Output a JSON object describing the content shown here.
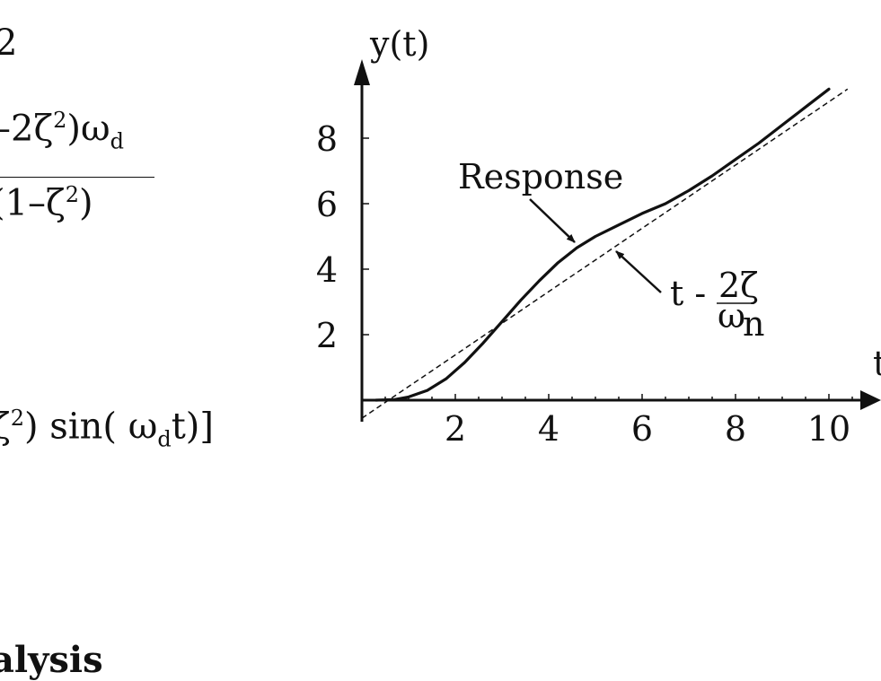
{
  "left_text": {
    "line1": "2",
    "numerator": "–2ζ",
    "numerator_sup": "2",
    "numerator_tail": ")ω",
    "numerator_sub": "d",
    "denominator": "(1–ζ",
    "denominator_sup": "2",
    "denominator_tail": ")",
    "sine_prefix": "ζ",
    "sine_sup": "2",
    "sine_mid": ") sin( ω",
    "sine_sub": "d",
    "sine_tail": "t)]",
    "bottom_heading": "alysis"
  },
  "chart_data": {
    "type": "line",
    "title": "",
    "xlabel": "t",
    "ylabel": "y(t)",
    "xlim": [
      0,
      11
    ],
    "ylim": [
      -0.5,
      10
    ],
    "x_ticks": [
      2,
      4,
      6,
      8,
      10
    ],
    "y_ticks": [
      2,
      4,
      6,
      8
    ],
    "series": [
      {
        "name": "Response",
        "style": "solid",
        "points": [
          [
            0.3,
            0.0
          ],
          [
            0.7,
            0.02
          ],
          [
            1.0,
            0.1
          ],
          [
            1.4,
            0.3
          ],
          [
            1.8,
            0.65
          ],
          [
            2.2,
            1.15
          ],
          [
            2.6,
            1.75
          ],
          [
            3.0,
            2.4
          ],
          [
            3.4,
            3.05
          ],
          [
            3.8,
            3.65
          ],
          [
            4.2,
            4.2
          ],
          [
            4.6,
            4.65
          ],
          [
            5.0,
            5.0
          ],
          [
            5.5,
            5.35
          ],
          [
            6.0,
            5.7
          ],
          [
            6.5,
            6.0
          ],
          [
            7.0,
            6.4
          ],
          [
            7.5,
            6.85
          ],
          [
            8.0,
            7.35
          ],
          [
            8.5,
            7.85
          ],
          [
            9.0,
            8.4
          ],
          [
            9.5,
            8.95
          ],
          [
            10.0,
            9.5
          ]
        ]
      },
      {
        "name": "t - 2ζ/ω_n",
        "style": "dashed",
        "points": [
          [
            0.0,
            -0.55
          ],
          [
            10.4,
            9.5
          ]
        ]
      }
    ],
    "annotations": {
      "response_label": "Response",
      "asymptote_label_prefix": "t -",
      "asymptote_label_num": "2ζ",
      "asymptote_label_den": "ω",
      "asymptote_label_den_sub": "n"
    }
  }
}
